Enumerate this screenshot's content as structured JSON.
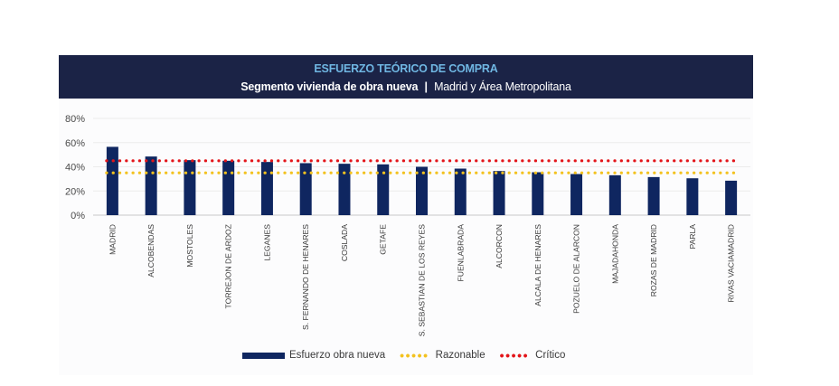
{
  "colors": {
    "bar": "#0f2660",
    "razonable": "#f3c21f",
    "critico": "#e3151a",
    "header_bg": "#1b2346",
    "title": "#6fb6e2"
  },
  "chart_data": {
    "type": "bar",
    "title": "ESFUERZO TEÓRICO DE COMPRA",
    "subtitle_bold": "Segmento vivienda de obra nueva",
    "subtitle_sep": "|",
    "subtitle_rest": "Madrid y Área Metropolitana",
    "categories": [
      "MADRID",
      "ALCOBENDAS",
      "MOSTOLES",
      "TORREJON DE ARDOZ",
      "LEGANES",
      "S. FERNANDO DE HENARES",
      "COSLADA",
      "GETAFE",
      "S. SEBASTIAN DE LOS REYES",
      "FUENLABRADA",
      "ALCORCON",
      "ALCALA DE HENARES",
      "POZUELO DE ALARCON",
      "MAJADAHONDA",
      "ROZAS DE MADRID",
      "PARLA",
      "RIVAS VACIAMADRID"
    ],
    "series": [
      {
        "name": "Esfuerzo obra nueva",
        "type": "bar",
        "values": [
          56.5,
          48.5,
          45.5,
          45,
          44,
          43,
          42.5,
          42,
          40,
          38.5,
          36.5,
          35.5,
          34,
          33,
          31.5,
          30.5,
          28.5
        ]
      },
      {
        "name": "Razonable",
        "type": "line-dotted",
        "value": 35
      },
      {
        "name": "Crítico",
        "type": "line-dotted",
        "value": 45
      }
    ],
    "ylim": [
      0,
      80
    ],
    "yticks": [
      0,
      20,
      40,
      60,
      80
    ],
    "ytick_labels": [
      "0%",
      "20%",
      "40%",
      "60%",
      "80%"
    ],
    "xlabel": "",
    "ylabel": "",
    "grid": true,
    "legend": "bottom"
  }
}
